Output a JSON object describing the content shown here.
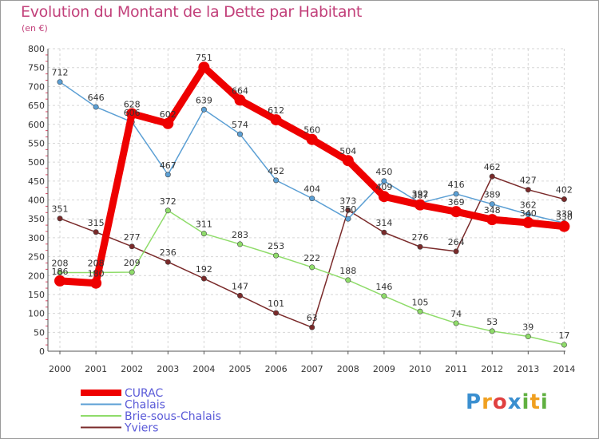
{
  "header": {
    "title": "Evolution du Montant de la Dette par Habitant",
    "unit": "(en €)"
  },
  "brand": {
    "text": "Proxiti",
    "letters": [
      {
        "ch": "P",
        "color": "#3a8fd0"
      },
      {
        "ch": "r",
        "color": "#f0a020"
      },
      {
        "ch": "o",
        "color": "#e04040"
      },
      {
        "ch": "x",
        "color": "#3a8fd0"
      },
      {
        "ch": "i",
        "color": "#60b040"
      },
      {
        "ch": "t",
        "color": "#f0a020"
      },
      {
        "ch": "i",
        "color": "#60b040"
      }
    ]
  },
  "chart_data": {
    "type": "line",
    "x": [
      "2000",
      "2001",
      "2002",
      "2003",
      "2004",
      "2005",
      "2006",
      "2007",
      "2008",
      "2009",
      "2010",
      "2011",
      "2012",
      "2013",
      "2014"
    ],
    "ylim": [
      0,
      800
    ],
    "yticks": [
      0,
      50,
      100,
      150,
      200,
      250,
      300,
      350,
      400,
      450,
      500,
      550,
      600,
      650,
      700,
      750,
      800
    ],
    "grid": true,
    "legend_position": "bottom-left",
    "series": [
      {
        "name": "Yviers",
        "color": "#7a2a2a",
        "values": [
          351,
          315,
          277,
          236,
          192,
          147,
          101,
          63,
          373,
          314,
          276,
          264,
          462,
          427,
          402
        ]
      },
      {
        "name": "Brie-sous-Chalais",
        "color": "#8fdc6a",
        "values": [
          208,
          208,
          209,
          372,
          311,
          283,
          253,
          222,
          188,
          146,
          105,
          74,
          53,
          39,
          17
        ]
      },
      {
        "name": "Chalais",
        "color": "#5b9fd4",
        "values": [
          712,
          646,
          606,
          467,
          639,
          574,
          452,
          404,
          350,
          450,
          392,
          416,
          389,
          362,
          339
        ]
      },
      {
        "name": "CURAC",
        "color": "#ee0000",
        "values": [
          186,
          180,
          628,
          602,
          751,
          664,
          612,
          560,
          504,
          409,
          387,
          369,
          348,
          340,
          330
        ]
      }
    ]
  }
}
